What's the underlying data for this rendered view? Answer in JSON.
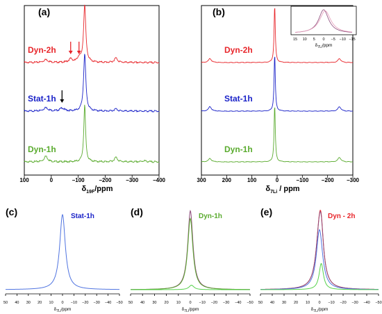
{
  "colors": {
    "red": "#e8262b",
    "blue": "#1a22c8",
    "green": "#5aab2e",
    "bluelight": "#4f73e0",
    "greenlight": "#55d24a",
    "purple": "#8c4a7a",
    "pink": "#e59ab8"
  },
  "chart_data": [
    {
      "id": "a",
      "panel_label": "(a)",
      "type": "line",
      "xlabel_main": "δ",
      "xlabel_sub": "19F",
      "xlabel_unit": "/ppm",
      "xlim": [
        100,
        -400
      ],
      "xticks": [
        "100",
        "0",
        "−100",
        "−200",
        "−300",
        "−400"
      ],
      "series": [
        {
          "name": "Dyn-2h",
          "color": "red",
          "peaks": [
            {
              "x": -124,
              "h": 1.0,
              "w": 5
            },
            {
              "x": 20,
              "h": 0.05,
              "w": 10
            },
            {
              "x": -72,
              "h": 0.06,
              "w": 8
            },
            {
              "x": -103,
              "h": 0.08,
              "w": 7
            },
            {
              "x": -240,
              "h": 0.08,
              "w": 7
            }
          ]
        },
        {
          "name": "Stat-1h",
          "color": "blue",
          "peaks": [
            {
              "x": -124,
              "h": 1.0,
              "w": 5
            },
            {
              "x": 20,
              "h": 0.06,
              "w": 10
            },
            {
              "x": -40,
              "h": 0.05,
              "w": 10
            },
            {
              "x": -240,
              "h": 0.04,
              "w": 7
            }
          ]
        },
        {
          "name": "Dyn-1h",
          "color": "green",
          "peaks": [
            {
              "x": -124,
              "h": 1.0,
              "w": 4
            },
            {
              "x": 20,
              "h": 0.1,
              "w": 8
            },
            {
              "x": -240,
              "h": 0.08,
              "w": 7
            },
            {
              "x": -345,
              "h": 0.02,
              "w": 8
            }
          ]
        }
      ],
      "arrows": [
        {
          "series": "Dyn-2h",
          "x": -72,
          "color": "red"
        },
        {
          "series": "Dyn-2h",
          "x": -103,
          "color": "red"
        },
        {
          "series": "Stat-1h",
          "x": -40,
          "color": "black"
        }
      ]
    },
    {
      "id": "b",
      "panel_label": "(b)",
      "type": "line",
      "xlabel_main": "δ",
      "xlabel_sub": "7Li",
      "xlabel_unit": " / ppm",
      "xlim": [
        300,
        -320
      ],
      "xticks": [
        "300",
        "200",
        "100",
        "0",
        "−100",
        "−200",
        "−300"
      ],
      "series": [
        {
          "name": "Dyn-2h",
          "color": "red",
          "peaks": [
            {
              "x": 0,
              "h": 1.0,
              "w": 3
            },
            {
              "x": 265,
              "h": 0.07,
              "w": 7
            },
            {
              "x": -265,
              "h": 0.07,
              "w": 7
            }
          ]
        },
        {
          "name": "Stat-1h",
          "color": "blue",
          "peaks": [
            {
              "x": 0,
              "h": 1.0,
              "w": 3
            },
            {
              "x": 265,
              "h": 0.08,
              "w": 7
            },
            {
              "x": -265,
              "h": 0.08,
              "w": 7
            }
          ]
        },
        {
          "name": "Dyn-1h",
          "color": "green",
          "peaks": [
            {
              "x": 0,
              "h": 1.0,
              "w": 3
            },
            {
              "x": 265,
              "h": 0.06,
              "w": 7
            },
            {
              "x": -265,
              "h": 0.08,
              "w": 7
            }
          ]
        }
      ],
      "inset": {
        "xlim": [
          15,
          -15
        ],
        "xticks": [
          "15",
          "10",
          "5",
          "0",
          "−5",
          "−10",
          "−15"
        ],
        "xlabel_main": "δ",
        "xlabel_sub": "7Li",
        "xlabel_unit": "/ppm",
        "series": [
          {
            "color": "purple",
            "peaks": [
              {
                "x": 0,
                "h": 1.0,
                "w": 3.2
              }
            ]
          },
          {
            "color": "pink",
            "peaks": [
              {
                "x": -0.8,
                "h": 0.95,
                "w": 3.6
              }
            ]
          }
        ]
      }
    },
    {
      "id": "c",
      "panel_label": "(c)",
      "type": "line",
      "legend": "Stat-1h",
      "legend_color": "blue",
      "xlabel_main": "δ",
      "xlabel_sub": "7Li",
      "xlabel_unit": "/ppm",
      "xlim": [
        50,
        -50
      ],
      "xticks": [
        "50",
        "40",
        "30",
        "20",
        "10",
        "0",
        "−10",
        "−20",
        "−30",
        "−40",
        "−50"
      ],
      "series": [
        {
          "color": "bluelight",
          "peaks": [
            {
              "x": 0,
              "h": 1.0,
              "w": 3.0
            }
          ]
        }
      ]
    },
    {
      "id": "d",
      "panel_label": "(d)",
      "type": "line",
      "legend": "Dyn-1h",
      "legend_color": "green",
      "xlabel_main": "δ",
      "xlabel_sub": "7Li",
      "xlabel_unit": "/ppm",
      "xlim": [
        50,
        -50
      ],
      "xticks": [
        "50",
        "40",
        "30",
        "20",
        "10",
        "0",
        "−10",
        "−20",
        "−30",
        "−40",
        "−50"
      ],
      "series": [
        {
          "color": "purple",
          "peaks": [
            {
              "x": 0,
              "h": 1.0,
              "w": 2.6
            },
            {
              "x": -1,
              "h": 0.06,
              "w": 2.5
            }
          ]
        },
        {
          "color": "green",
          "peaks": [
            {
              "x": 0,
              "h": 0.95,
              "w": 2.6
            }
          ]
        },
        {
          "color": "greenlight",
          "peaks": [
            {
              "x": -1,
              "h": 0.06,
              "w": 2.5
            }
          ]
        }
      ]
    },
    {
      "id": "e",
      "panel_label": "(e)",
      "type": "line",
      "legend": "Dyn - 2h",
      "legend_color": "red",
      "xlabel_main": "δ",
      "xlabel_sub": "7Li",
      "xlabel_unit": "/ppm",
      "xlim": [
        50,
        -50
      ],
      "xticks": [
        "50",
        "40",
        "30",
        "20",
        "10",
        "0",
        "−10",
        "−20",
        "−30",
        "−40",
        "−50"
      ],
      "series": [
        {
          "color": "red",
          "peaks": [
            {
              "x": 0,
              "h": 0.78,
              "w": 3.5
            },
            {
              "x": -1.5,
              "h": 0.35,
              "w": 2.2
            }
          ]
        },
        {
          "color": "purple",
          "peaks": [
            {
              "x": 0,
              "h": 0.78,
              "w": 3.5
            },
            {
              "x": -1.5,
              "h": 0.33,
              "w": 2.2
            }
          ]
        },
        {
          "color": "bluelight",
          "peaks": [
            {
              "x": 0,
              "h": 0.8,
              "w": 3.2
            }
          ]
        },
        {
          "color": "greenlight",
          "peaks": [
            {
              "x": -1.5,
              "h": 0.35,
              "w": 2.2
            }
          ]
        }
      ]
    }
  ]
}
